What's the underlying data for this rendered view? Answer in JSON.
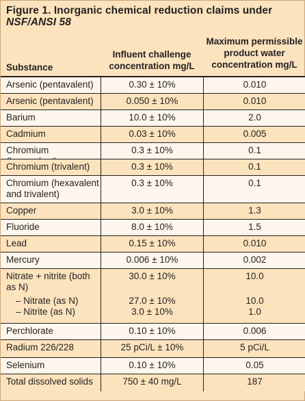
{
  "figure": {
    "title_main": "Figure 1. Inorganic chemical reduction claims under ",
    "title_std": "NSF/ANSI 58"
  },
  "header": {
    "substance": "Substance",
    "influent": "Influent challenge concentration mg/L",
    "maximum": "Maximum permissible product water concentration mg/L"
  },
  "rows": [
    {
      "substance": "Arsenic (pentavalent)",
      "influent": "0.30 ± 10%",
      "maximum": "0.010"
    },
    {
      "substance": "Arsenic (pentavalent)",
      "influent": "0.050 ± 10%",
      "maximum": "0.010"
    },
    {
      "substance": "Barium",
      "influent": "10.0 ± 10%",
      "maximum": "2.0"
    },
    {
      "substance": "Cadmium",
      "influent": "0.03 ± 10%",
      "maximum": "0.005"
    },
    {
      "substance": "Chromium (hexavalent)",
      "influent": "0.3 ± 10%",
      "maximum": "0.1"
    },
    {
      "substance": "Chromium (trivalent)",
      "influent": "0.3 ± 10%",
      "maximum": "0.1"
    },
    {
      "substance": "Chromium (hexavalent and trivalent)",
      "influent": "0.3 ± 10%",
      "maximum": "0.1"
    },
    {
      "substance": "Copper",
      "influent": "3.0 ± 10%",
      "maximum": "1.3"
    },
    {
      "substance": "Fluoride",
      "influent": "8.0 ± 10%",
      "maximum": "1.5"
    },
    {
      "substance": "Lead",
      "influent": "0.15 ± 10%",
      "maximum": "0.010"
    },
    {
      "substance": "Mercury",
      "influent": "0.006 ± 10%",
      "maximum": "0.002"
    },
    {
      "substance": "Nitrate + nitrite (both as N)",
      "influent": "30.0 ± 10%",
      "maximum": "10.0",
      "sub": [
        {
          "substance": "– Nitrate (as N)",
          "influent": "27.0 ± 10%",
          "maximum": "10.0"
        },
        {
          "substance": "– Nitrite (as N)",
          "influent": "3.0 ± 10%",
          "maximum": "1.0"
        }
      ]
    },
    {
      "substance": "Perchlorate",
      "influent": "0.10 ± 10%",
      "maximum": "0.006"
    },
    {
      "substance": "Radium 226/228",
      "influent": "25 pCi/L ± 10%",
      "maximum": "5 pCi/L"
    },
    {
      "substance": "Selenium",
      "influent": "0.10 ± 10%",
      "maximum": "0.05"
    },
    {
      "substance": "Total dissolved solids",
      "influent": "750 ± 40 mg/L",
      "maximum": "187"
    }
  ]
}
